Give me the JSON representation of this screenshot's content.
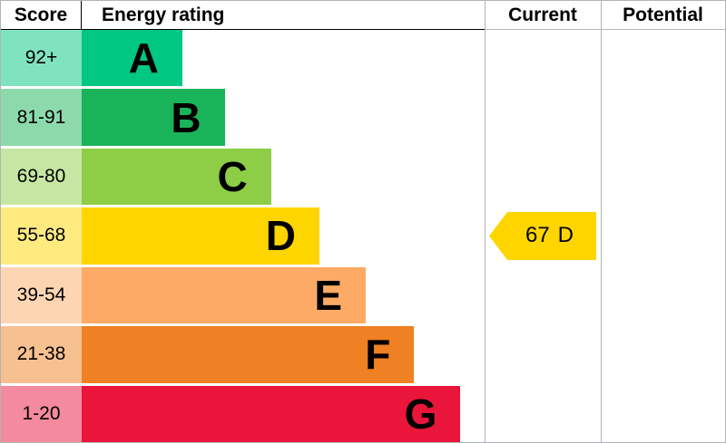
{
  "header": {
    "score": "Score",
    "energy_rating": "Energy rating",
    "current": "Current",
    "potential": "Potential"
  },
  "chart_data": {
    "type": "bar",
    "title": "Energy rating",
    "categories": [
      "A",
      "B",
      "C",
      "D",
      "E",
      "F",
      "G"
    ],
    "bands": [
      {
        "letter": "A",
        "score": "92+",
        "color": "#00c781",
        "tint": "#80e3c0",
        "bar_width_pct": 25
      },
      {
        "letter": "B",
        "score": "81-91",
        "color": "#19b459",
        "tint": "#8cdaac",
        "bar_width_pct": 35.5
      },
      {
        "letter": "C",
        "score": "69-80",
        "color": "#8dce46",
        "tint": "#c6e7a3",
        "bar_width_pct": 47
      },
      {
        "letter": "D",
        "score": "55-68",
        "color": "#ffd500",
        "tint": "#ffea80",
        "bar_width_pct": 59
      },
      {
        "letter": "E",
        "score": "39-54",
        "color": "#fcaa65",
        "tint": "#fed5b2",
        "bar_width_pct": 70.5
      },
      {
        "letter": "F",
        "score": "21-38",
        "color": "#ef8023",
        "tint": "#f7c091",
        "bar_width_pct": 82.5
      },
      {
        "letter": "G",
        "score": "1-20",
        "color": "#e9153b",
        "tint": "#f48a9d",
        "bar_width_pct": 94
      }
    ],
    "current": {
      "value": "67",
      "band": "D",
      "band_index": 3,
      "color": "#ffd500"
    },
    "potential": null
  }
}
